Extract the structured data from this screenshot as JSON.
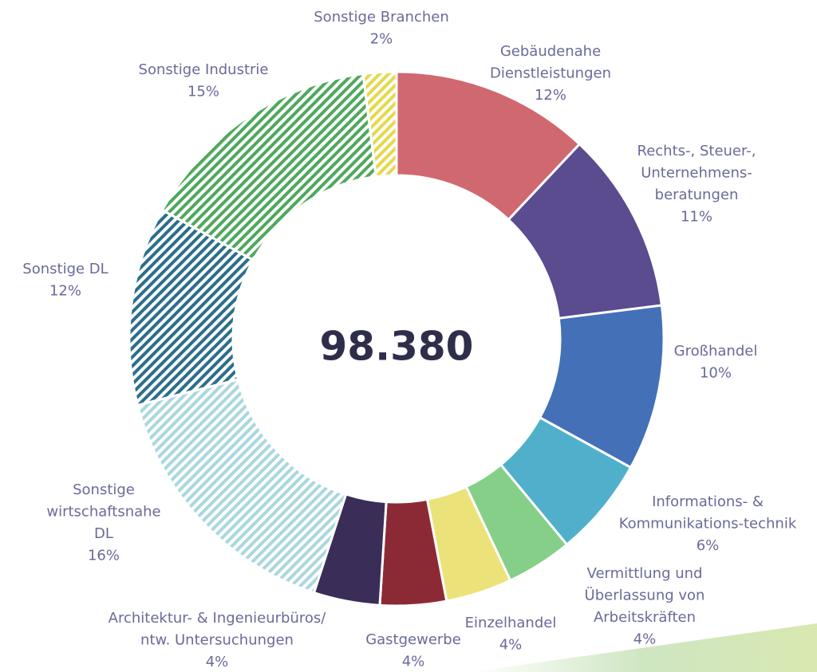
{
  "chart_data": {
    "type": "donut",
    "center_text": "98.380",
    "categories": [
      [
        "Gebäudenahe",
        "Dienstleistungen"
      ],
      [
        "Rechts-, Steuer-,",
        "Unternehmens-",
        "beratungen"
      ],
      [
        "Großhandel"
      ],
      [
        "Informations- &",
        "Kommunikations-technik"
      ],
      [
        "Vermittlung und",
        "Überlassung von",
        "Arbeitskräften"
      ],
      [
        "Einzelhandel"
      ],
      [
        "Gastgewerbe"
      ],
      [
        "Architektur- & Ingenieurbüros/",
        "ntw. Untersuchungen"
      ],
      [
        "Sonstige",
        "wirtschaftsnahe",
        "DL"
      ],
      [
        "Sonstige DL"
      ],
      [
        "Sonstige Industrie"
      ],
      [
        "Sonstige Branchen"
      ]
    ],
    "values": [
      12,
      11,
      10,
      6,
      4,
      4,
      4,
      4,
      16,
      12,
      15,
      2
    ],
    "value_labels": [
      "12%",
      "11%",
      "10%",
      "6%",
      "4%",
      "4%",
      "4%",
      "4%",
      "16%",
      "12%",
      "15%",
      "2%"
    ],
    "colors": [
      "#d0686f",
      "#5b4b8f",
      "#4470b8",
      "#50b0cc",
      "#86cf88",
      "#ece27a",
      "#8b2a35",
      "#3a2d58",
      "#a9d7e0",
      "#2b6e8c",
      "#4ea85c",
      "#e6d84a"
    ],
    "hatched": [
      false,
      false,
      false,
      false,
      false,
      false,
      false,
      false,
      true,
      true,
      true,
      true
    ]
  }
}
